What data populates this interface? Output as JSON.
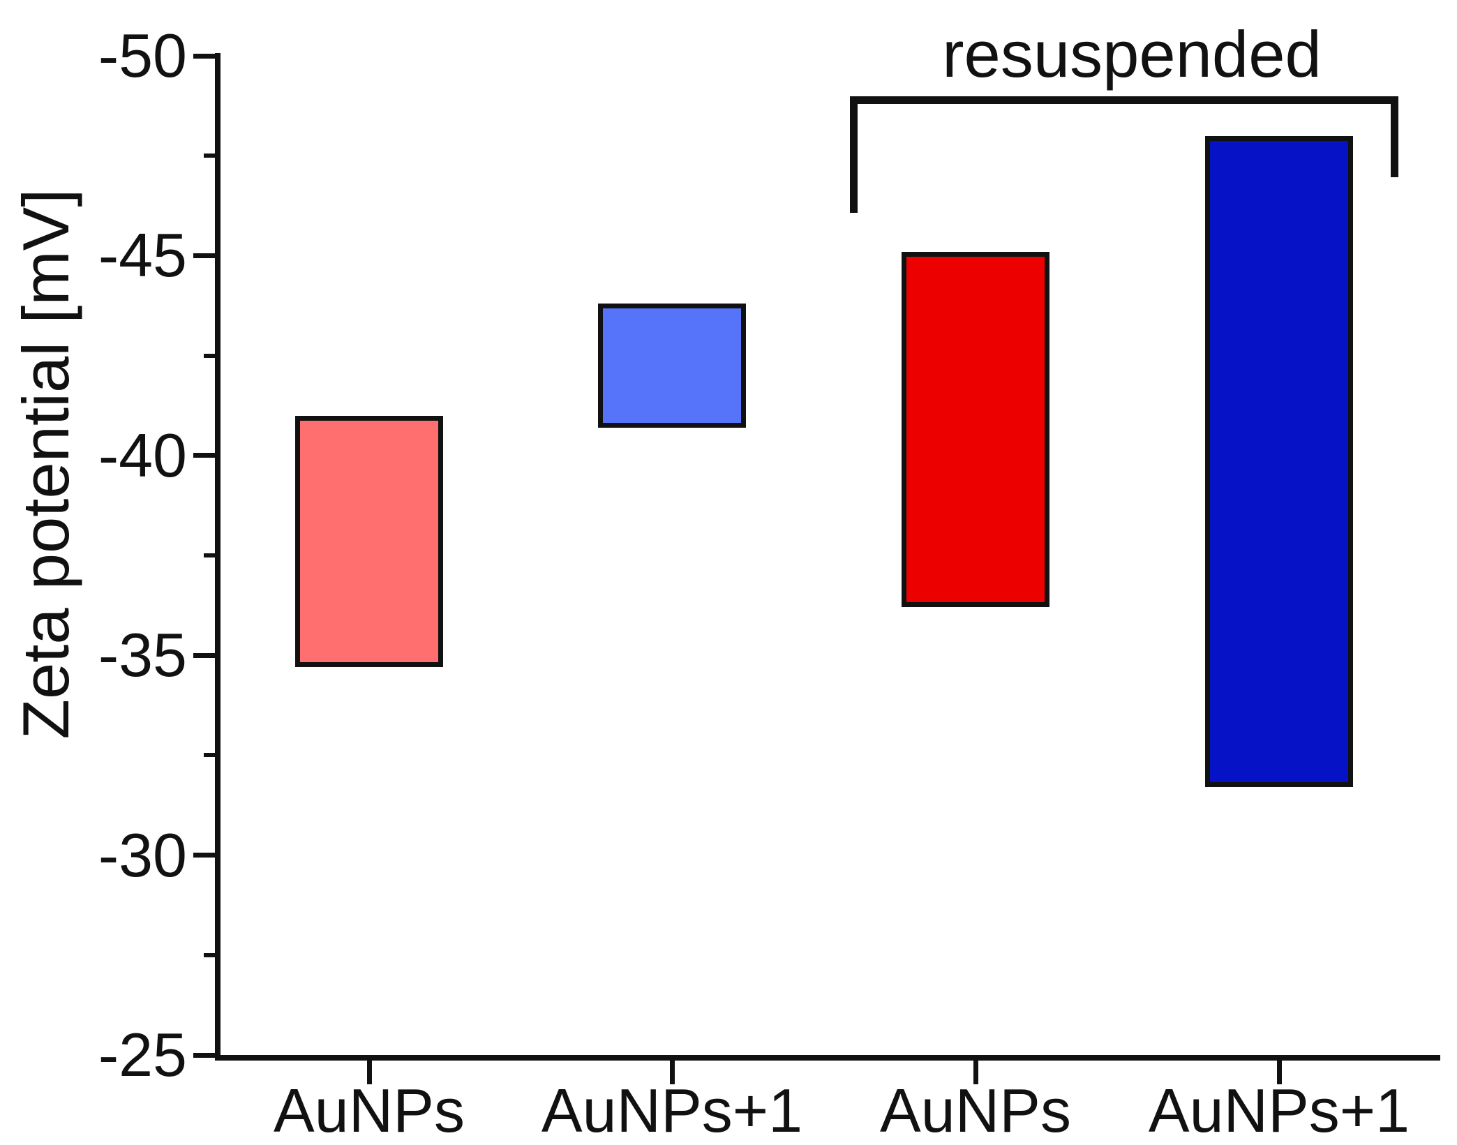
{
  "chart_data": {
    "type": "bar",
    "subtype": "floating-range-columns",
    "title": "",
    "xlabel": "",
    "ylabel": "Zeta potential [mV]",
    "categories": [
      "AuNPs",
      "AuNPs+1",
      "AuNPs",
      "AuNPs+1"
    ],
    "series": [
      {
        "name": "AuNPs",
        "resuspended": false,
        "range_mV": [
          -41.0,
          -34.7
        ],
        "color": "#FF6F6F"
      },
      {
        "name": "AuNPs+1",
        "resuspended": false,
        "range_mV": [
          -43.8,
          -40.7
        ],
        "color": "#5574FA"
      },
      {
        "name": "AuNPs",
        "resuspended": true,
        "range_mV": [
          -45.1,
          -36.2
        ],
        "color": "#ED0000"
      },
      {
        "name": "AuNPs+1",
        "resuspended": true,
        "range_mV": [
          -48.0,
          -31.7
        ],
        "color": "#0512C6"
      }
    ],
    "y_axis": {
      "tick_labels": [
        "-50",
        "-45",
        "-40",
        "-35",
        "-30",
        "-25"
      ],
      "tick_values": [
        -50,
        -45,
        -40,
        -35,
        -30,
        -25
      ],
      "minor_ticks": [
        -47.5,
        -42.5,
        -37.5,
        -32.5,
        -27.5
      ],
      "range": [
        -50,
        -25
      ],
      "note": "axis inverted: -50 at top, -25 at bottom"
    },
    "annotation": {
      "text": "resuspended",
      "covers_category_indexes": [
        2,
        3
      ]
    },
    "legend": "none",
    "grid": false,
    "colors": {
      "axis": "#111111",
      "background": "#FFFFFF",
      "text": "#111111"
    }
  }
}
